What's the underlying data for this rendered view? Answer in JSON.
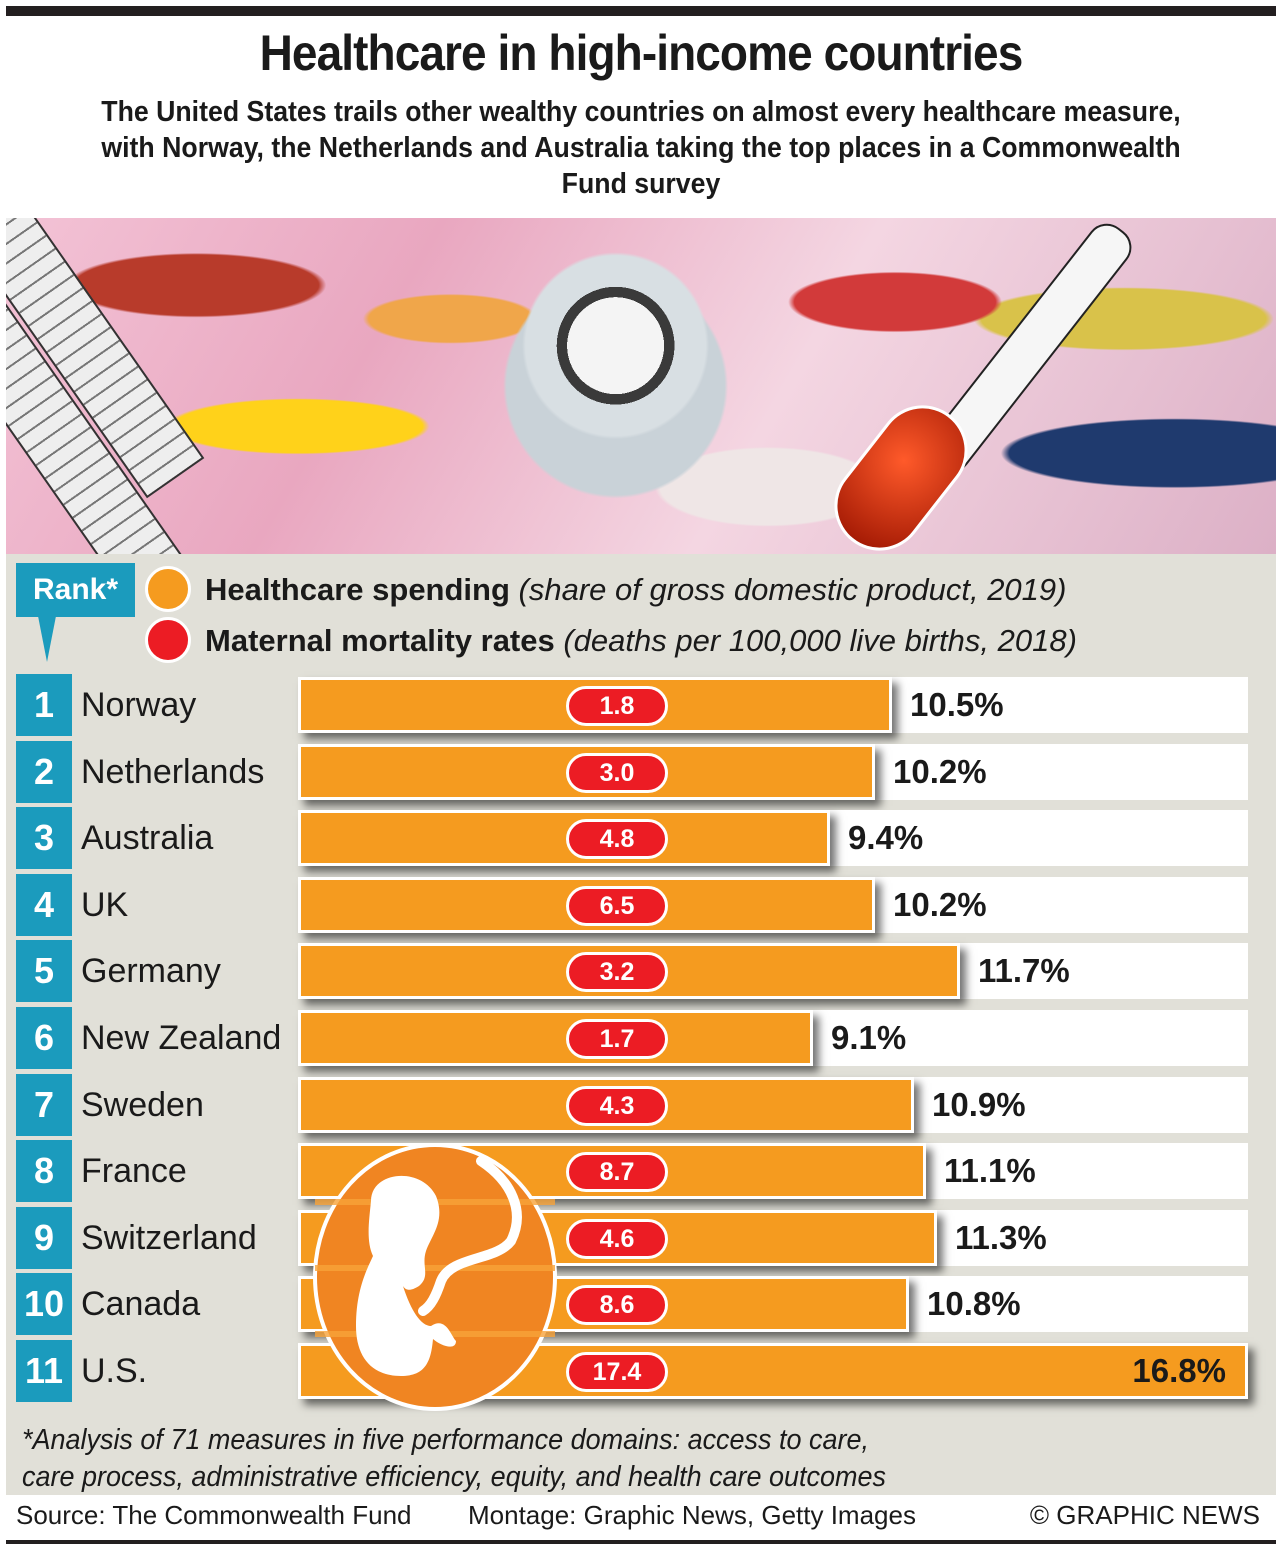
{
  "header": {
    "title": "Healthcare in high-income countries",
    "subtitle": "The United States trails other wealthy countries on almost every healthcare measure, with Norway, the Netherlands and Australia taking the top places in a Commonwealth Fund survey"
  },
  "legend": {
    "rank_label": "Rank*",
    "spending_label": "Healthcare spending",
    "spending_note": "(share of gross domestic product, 2019)",
    "mortality_label": "Maternal mortality rates",
    "mortality_note": "(deaths per 100,000 live births, 2018)"
  },
  "colors": {
    "spending": "#f59b1f",
    "mortality": "#ec1c24",
    "rank": "#1b9bbd",
    "panel": "#e1e0d8"
  },
  "chart_data": {
    "type": "bar",
    "orientation": "horizontal",
    "title": "Healthcare in high-income countries",
    "categories": [
      "Norway",
      "Netherlands",
      "Australia",
      "UK",
      "Germany",
      "New Zealand",
      "Sweden",
      "France",
      "Switzerland",
      "Canada",
      "U.S."
    ],
    "ranks": [
      1,
      2,
      3,
      4,
      5,
      6,
      7,
      8,
      9,
      10,
      11
    ],
    "series": [
      {
        "name": "Healthcare spending (share of GDP, 2019)",
        "unit": "%",
        "values": [
          10.5,
          10.2,
          9.4,
          10.2,
          11.7,
          9.1,
          10.9,
          11.1,
          11.3,
          10.8,
          16.8
        ],
        "labels": [
          "10.5%",
          "10.2%",
          "9.4%",
          "10.2%",
          "11.7%",
          "9.1%",
          "10.9%",
          "11.1%",
          "11.3%",
          "10.8%",
          "16.8%"
        ]
      },
      {
        "name": "Maternal mortality rates (deaths per 100,000 live births, 2018)",
        "values": [
          1.8,
          3.0,
          4.8,
          6.5,
          3.2,
          1.7,
          4.3,
          8.7,
          4.6,
          8.6,
          17.4
        ],
        "labels": [
          "1.8",
          "3.0",
          "4.8",
          "6.5",
          "3.2",
          "1.7",
          "4.3",
          "8.7",
          "4.6",
          "8.6",
          "17.4"
        ]
      }
    ],
    "xlim": [
      0,
      16.8
    ],
    "grid": false,
    "legend_position": "top"
  },
  "footnote": {
    "line1": "*Analysis of 71 measures in five performance domains: access to care,",
    "line2": "care process, administrative efficiency, equity, and health care outcomes"
  },
  "footer": {
    "source": "Source: The Commonwealth Fund",
    "montage": "Montage: Graphic News, Getty Images",
    "copyright": "© GRAPHIC NEWS"
  }
}
